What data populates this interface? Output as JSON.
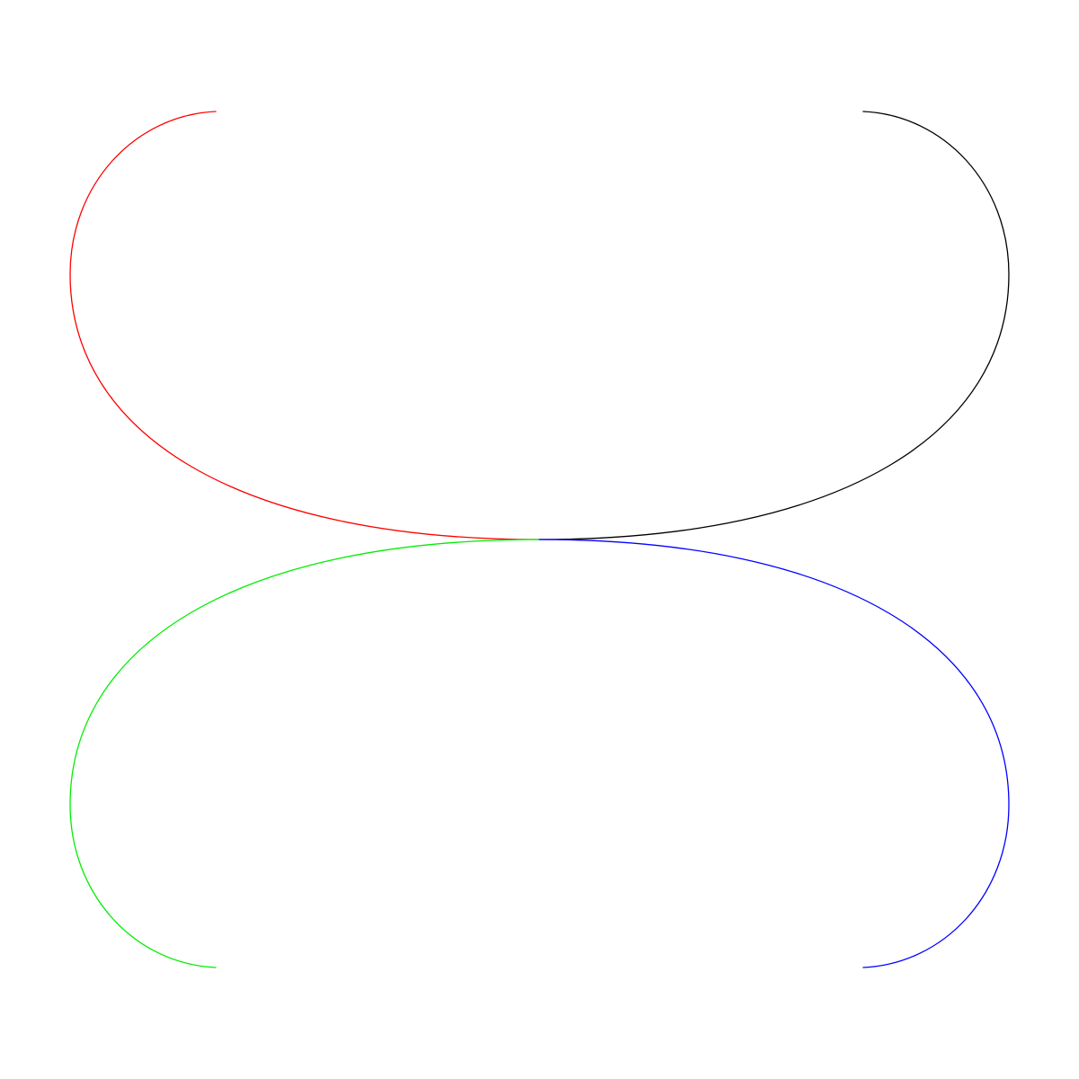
{
  "curves": [
    {
      "name": "top-left",
      "color": "#ff0000"
    },
    {
      "name": "top-right",
      "color": "#000000"
    },
    {
      "name": "bottom-left",
      "color": "#00ee00"
    },
    {
      "name": "bottom-right",
      "color": "#0000ff"
    }
  ]
}
